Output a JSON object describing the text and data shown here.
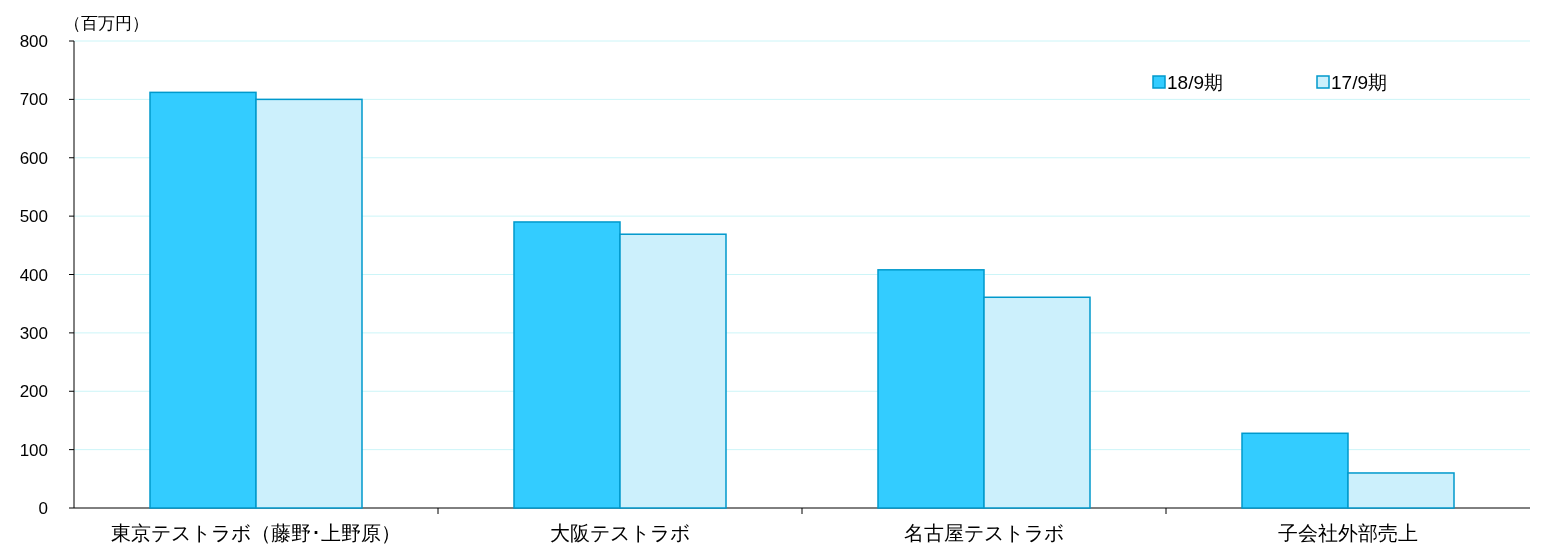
{
  "chart_data": {
    "type": "bar",
    "ylabel": "（百万円）",
    "categories": [
      "東京テストラボ（藤野･上野原）",
      "大阪テストラボ",
      "名古屋テストラボ",
      "子会社外部売上"
    ],
    "series": [
      {
        "name": "18/9期",
        "color": "#33ccff",
        "values": [
          712,
          490,
          408,
          128
        ]
      },
      {
        "name": "17/9期",
        "color": "#ccf0fc",
        "values": [
          700,
          469,
          361,
          60
        ]
      }
    ],
    "ylim": [
      0,
      800
    ],
    "yticks": [
      0,
      100,
      200,
      300,
      400,
      500,
      600,
      700,
      800
    ],
    "grid": "y",
    "legend": "top right"
  }
}
